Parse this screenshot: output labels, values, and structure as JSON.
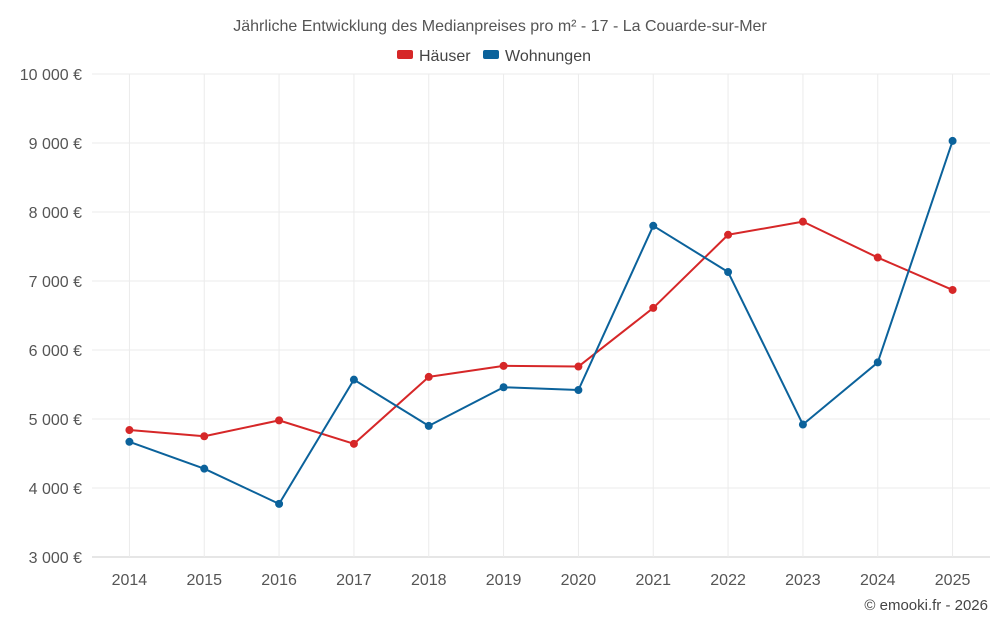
{
  "chart_data": {
    "type": "line",
    "title": "Jährliche Entwicklung des Medianpreises pro m² - 17 - La Couarde-sur-Mer",
    "categories": [
      "2014",
      "2015",
      "2016",
      "2017",
      "2018",
      "2019",
      "2020",
      "2021",
      "2022",
      "2023",
      "2024",
      "2025"
    ],
    "series": [
      {
        "name": "Häuser",
        "color": "#d62728",
        "values": [
          4840,
          4750,
          4980,
          4640,
          5610,
          5770,
          5760,
          6610,
          7670,
          7860,
          7340,
          6870
        ]
      },
      {
        "name": "Wohnungen",
        "color": "#0b629b",
        "values": [
          4670,
          4280,
          3770,
          5570,
          4900,
          5460,
          5420,
          7800,
          7130,
          4920,
          5820,
          9030
        ]
      }
    ],
    "ylim": [
      3000,
      10000
    ],
    "yticks": [
      3000,
      4000,
      5000,
      6000,
      7000,
      8000,
      9000,
      10000
    ],
    "ytick_labels": [
      "3 000 €",
      "4 000 €",
      "5 000 €",
      "6 000 €",
      "7 000 €",
      "8 000 €",
      "9 000 €",
      "10 000 €"
    ],
    "xlabel": "",
    "ylabel": "",
    "grid": true,
    "legend_position": "top-center"
  },
  "credit": "© emooki.fr - 2026"
}
